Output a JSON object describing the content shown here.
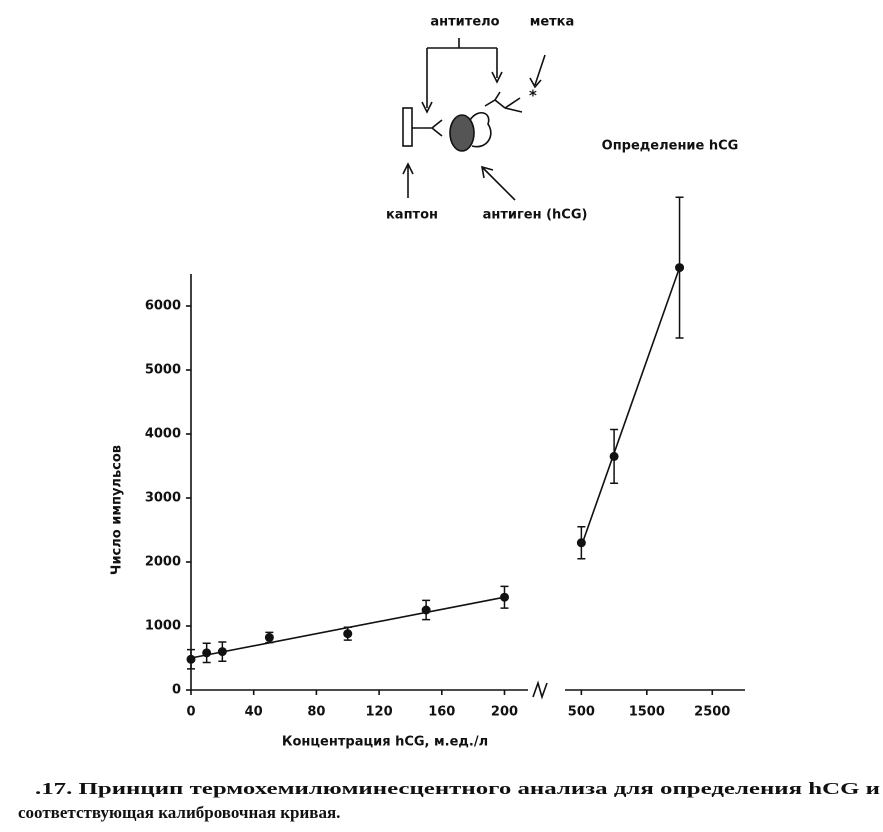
{
  "diagram": {
    "antibody": "антитело",
    "label": "метка",
    "support": "каптон",
    "antigen": "антиген (hCG)"
  },
  "caption": [
    ".17. Принцип термохемилюминесцентного анализа для определения hCG и",
    "соответствующая калибровочная кривая."
  ],
  "chart_data": {
    "type": "scatter",
    "annotation": "Определение hCG",
    "x_label": "Концентрация hCG, м.ед./л",
    "y_label": "Число импульсов",
    "ylim": [
      0,
      6500
    ],
    "yticks": [
      0,
      1000,
      2000,
      3000,
      4000,
      5000,
      6000
    ],
    "x_segments": [
      {
        "xlim": [
          0,
          215
        ],
        "xticks": [
          0,
          40,
          80,
          120,
          160,
          200
        ]
      },
      {
        "xlim": [
          250,
          3000
        ],
        "xticks": [
          500,
          1500,
          2500
        ]
      }
    ],
    "series": [
      {
        "color": "#111",
        "x": [
          0,
          10,
          20,
          50,
          100,
          150,
          200,
          500,
          1000,
          2000
        ],
        "values": [
          480,
          580,
          600,
          820,
          880,
          1250,
          1450,
          2300,
          3650,
          6600
        ],
        "errors": [
          150,
          150,
          150,
          80,
          100,
          150,
          170,
          250,
          420,
          1100
        ]
      }
    ],
    "fit_lines": [
      {
        "x": [
          0,
          200
        ],
        "values": [
          500,
          1450
        ]
      },
      {
        "x": [
          500,
          2000
        ],
        "values": [
          2250,
          6600
        ]
      }
    ]
  }
}
